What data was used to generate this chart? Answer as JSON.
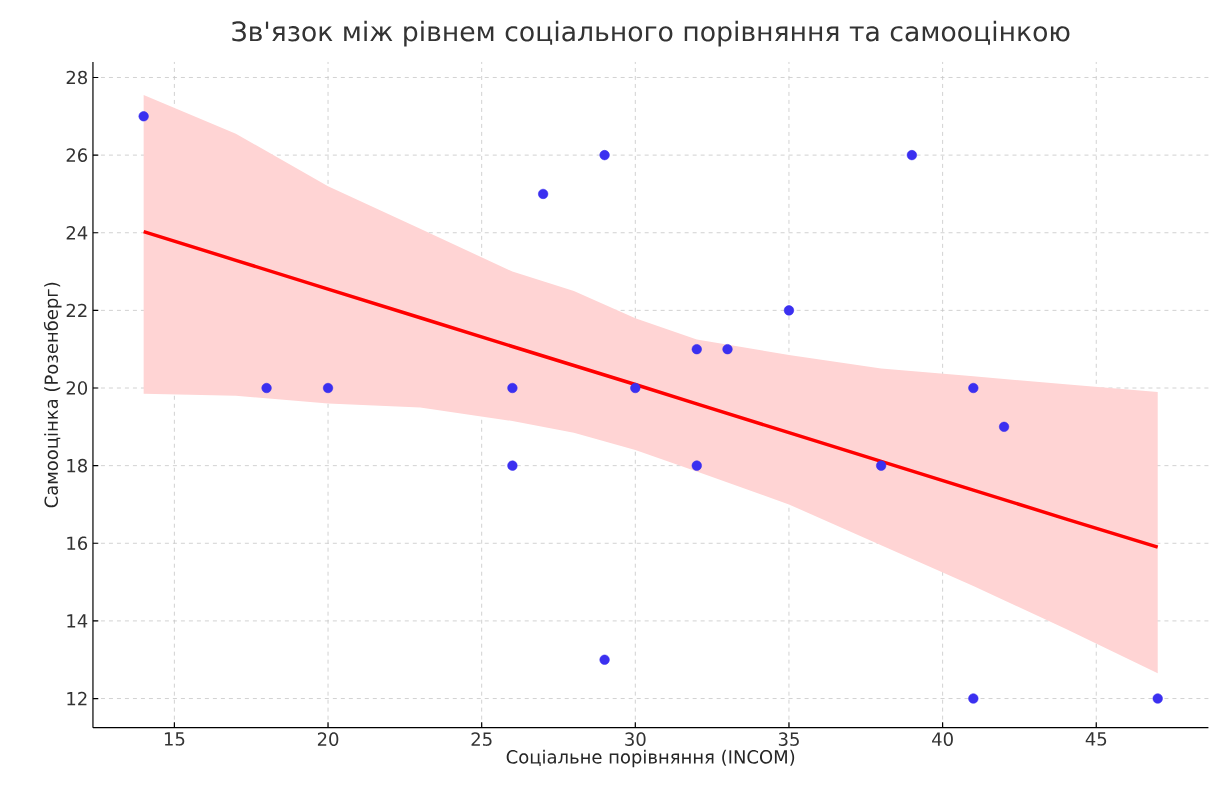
{
  "chart_data": {
    "type": "scatter",
    "title": "Зв'язок між рівнем соціального порівняння та самооцінкою",
    "xlabel": "Соціальне порівняння (INCOM)",
    "ylabel": "Самооцінка (Розенберг)",
    "xlim": [
      12.35,
      48.65
    ],
    "ylim": [
      11.25,
      28.4
    ],
    "xticks": [
      15,
      20,
      25,
      30,
      35,
      40,
      45
    ],
    "yticks": [
      12,
      14,
      16,
      18,
      20,
      22,
      24,
      26,
      28
    ],
    "grid": true,
    "series": [
      {
        "color": "#3b30f0",
        "marker": "circle",
        "x": [
          14,
          18,
          20,
          26,
          26,
          27,
          29,
          29,
          30,
          32,
          32,
          33,
          35,
          38,
          39,
          41,
          41,
          42,
          47
        ],
        "values": [
          27,
          20,
          20,
          20,
          18,
          25,
          26,
          13,
          20,
          21,
          18,
          21,
          22,
          18,
          26,
          20,
          12,
          19,
          12
        ]
      },
      {
        "type": "line",
        "color": "#ff0000",
        "line_style": "solid",
        "x": [
          14,
          17,
          20,
          23,
          26,
          28,
          30,
          32,
          35,
          38,
          41,
          44,
          47
        ],
        "values": [
          24.03,
          23.29,
          22.55,
          21.81,
          21.07,
          20.58,
          20.09,
          19.59,
          18.85,
          18.11,
          17.37,
          16.63,
          15.9
        ],
        "lower": [
          19.85,
          19.8,
          19.6,
          19.5,
          19.15,
          18.85,
          18.4,
          17.85,
          17.0,
          15.95,
          14.9,
          13.8,
          12.65
        ],
        "upper": [
          27.55,
          26.55,
          25.2,
          24.1,
          23.0,
          22.5,
          21.8,
          21.25,
          20.85,
          20.5,
          20.3,
          20.1,
          19.9
        ]
      }
    ]
  }
}
